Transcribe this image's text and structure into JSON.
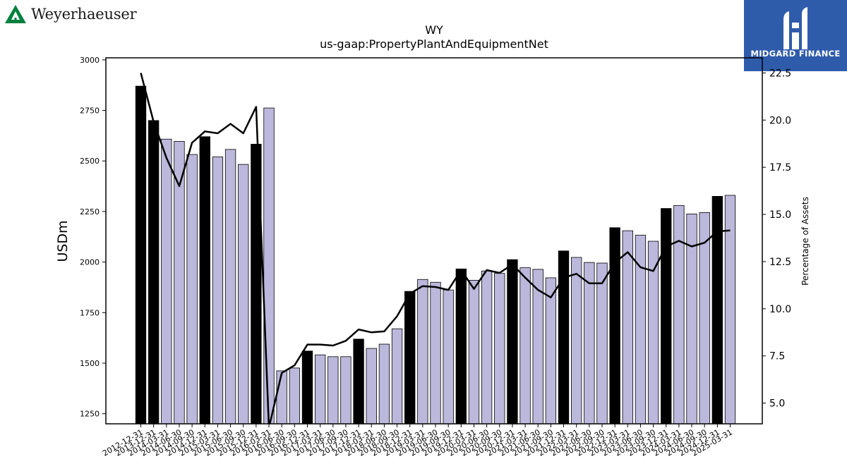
{
  "brand_left": {
    "name": "Weyerhaeuser",
    "color": "#00813f"
  },
  "brand_right": {
    "name": "MIDGARD FINANCE",
    "color": "#2f5bab"
  },
  "chart_data": {
    "type": "bar",
    "title": "WY",
    "subtitle": "us-gaap:PropertyPlantAndEquipmentNet",
    "ylabel": "USDm",
    "y2label": "Percentage of Assets",
    "ylim": [
      1200,
      3010
    ],
    "y2lim": [
      3.9,
      23.3
    ],
    "yticks": [
      1250,
      1500,
      1750,
      2000,
      2250,
      2500,
      2750,
      3000
    ],
    "y2ticks": [
      "5.0",
      "7.5",
      "10.0",
      "12.5",
      "15.0",
      "17.5",
      "20.0",
      "22.5"
    ],
    "categories": [
      "2012-12-31",
      "2013-12-31",
      "2014-03-31",
      "2014-06-30",
      "2014-09-30",
      "2014-12-31",
      "2015-03-31",
      "2015-06-30",
      "2015-09-30",
      "2015-12-31",
      "2016-03-31",
      "2016-06-30",
      "2016-09-30",
      "2016-12-31",
      "2017-03-31",
      "2017-06-30",
      "2017-09-30",
      "2017-12-31",
      "2018-03-31",
      "2018-06-30",
      "2018-09-30",
      "2018-12-31",
      "2019-03-31",
      "2019-06-30",
      "2019-09-30",
      "2019-12-31",
      "2020-03-31",
      "2020-06-30",
      "2020-09-30",
      "2020-12-31",
      "2021-03-31",
      "2021-06-30",
      "2021-09-30",
      "2021-12-31",
      "2022-03-31",
      "2022-06-30",
      "2022-09-30",
      "2022-12-31",
      "2023-03-31",
      "2023-06-30",
      "2023-09-30",
      "2023-12-31",
      "2024-03-31",
      "2024-06-30",
      "2024-09-30",
      "2024-12-31",
      "2025-03-31"
    ],
    "series": [
      {
        "kind": "bar",
        "values": [
          2870,
          2700,
          2608,
          2597,
          2532,
          2620,
          2520,
          2557,
          2483,
          2583,
          2762,
          1462,
          1476,
          1560,
          1541,
          1532,
          1532,
          1619,
          1573,
          1594,
          1670,
          1855,
          1914,
          1900,
          1862,
          1966,
          1910,
          1956,
          1944,
          2012,
          1972,
          1964,
          1922,
          2055,
          2023,
          1998,
          1995,
          2170,
          2155,
          2133,
          2103,
          2265,
          2280,
          2238,
          2245,
          2325,
          2330
        ],
        "annual": [
          true,
          true,
          false,
          false,
          false,
          true,
          false,
          false,
          false,
          true,
          false,
          false,
          false,
          true,
          false,
          false,
          false,
          true,
          false,
          false,
          false,
          true,
          false,
          false,
          false,
          true,
          false,
          false,
          false,
          true,
          false,
          false,
          false,
          true,
          false,
          false,
          false,
          true,
          false,
          false,
          false,
          true,
          false,
          false,
          false,
          true,
          false
        ]
      },
      {
        "kind": "line",
        "axis": "right",
        "values": [
          22.5,
          19.9,
          18.0,
          16.5,
          18.8,
          19.4,
          19.3,
          19.8,
          19.3,
          20.7,
          3.7,
          6.6,
          7.0,
          8.1,
          8.1,
          8.05,
          8.3,
          8.9,
          8.75,
          8.8,
          9.6,
          10.8,
          11.2,
          11.15,
          11.0,
          12.05,
          11.05,
          12.05,
          11.9,
          12.35,
          11.65,
          11.0,
          10.6,
          11.65,
          11.85,
          11.35,
          11.35,
          12.45,
          13.0,
          12.2,
          12.0,
          13.3,
          13.6,
          13.3,
          13.5,
          14.1,
          14.15
        ]
      }
    ],
    "colors": {
      "annual_bar": "#000000",
      "quarter_bar": "#bcb8dc",
      "line": "#000000"
    }
  }
}
